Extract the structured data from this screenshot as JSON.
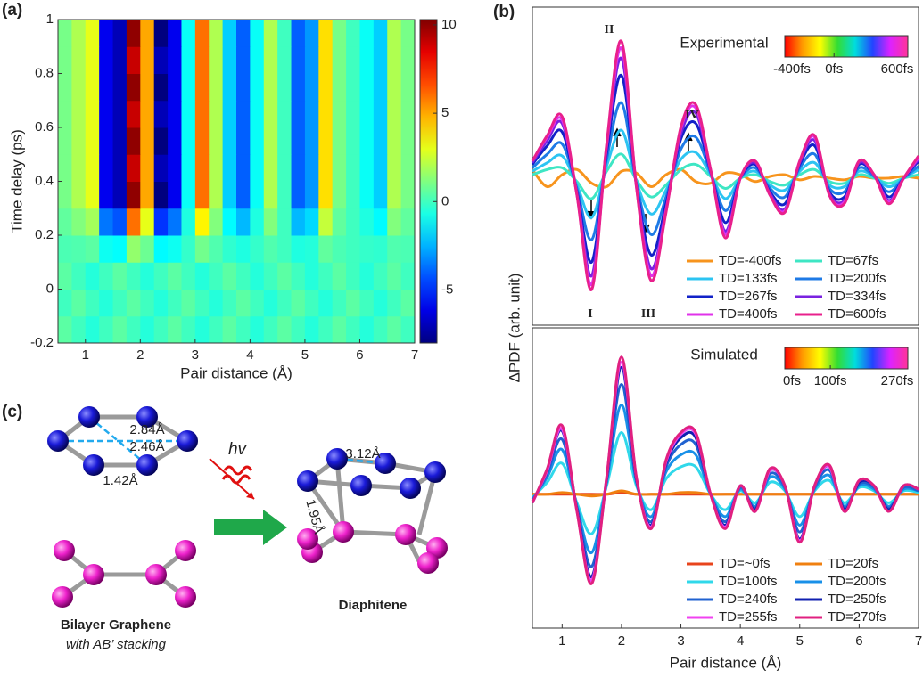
{
  "panel_labels": [
    "(a)",
    "(b)",
    "(c)"
  ],
  "panel_c": {
    "d1": "2.84Å",
    "d2": "2.46Å",
    "d3": "1.42Å",
    "light": "hv",
    "d4": "3.12Å",
    "d5": "1.95Å",
    "left_title": "Bilayer Graphene",
    "left_subtitle": "with AB’ stacking",
    "right_title": "Diaphitene"
  },
  "chart_data": [
    {
      "type": "heatmap",
      "xlabel": "Pair distance (Å)",
      "ylabel": "Time delay (ps)",
      "colormap": "jet",
      "xlim": [
        0.5,
        7
      ],
      "ylim": [
        -0.2,
        1
      ],
      "xticks": [
        1,
        2,
        3,
        4,
        5,
        6,
        7
      ],
      "yticks": [
        -0.2,
        0,
        0.2,
        0.4,
        0.6,
        0.8,
        1
      ],
      "clim": [
        -8,
        10.3
      ],
      "cticks": [
        -5,
        0,
        5,
        10
      ],
      "x_bins": [
        0.5,
        0.75,
        1,
        1.25,
        1.5,
        1.75,
        2,
        2.25,
        2.5,
        2.75,
        3,
        3.25,
        3.5,
        3.75,
        4,
        4.25,
        4.5,
        4.75,
        5,
        5.25,
        5.5,
        5.75,
        6,
        6.25,
        6.5,
        6.75,
        7
      ],
      "y_bins": [
        -0.2,
        -0.1,
        0,
        0.1,
        0.2,
        0.3,
        0.4,
        0.5,
        0.6,
        0.7,
        0.8,
        0.9,
        1
      ],
      "values": [
        [
          0.5,
          0,
          -0.5,
          0,
          0.5,
          0,
          -0.5,
          0,
          0.5,
          0,
          -0.5,
          0,
          0.5,
          0,
          -0.5,
          0,
          0.5,
          0,
          -0.5,
          0,
          0.5,
          0,
          -0.5,
          0,
          0.5,
          0
        ],
        [
          0,
          0.5,
          0,
          -0.5,
          0,
          0.5,
          0,
          -0.5,
          0,
          0.5,
          0,
          -0.5,
          0,
          0.5,
          0,
          -0.5,
          0,
          0.5,
          0,
          -0.5,
          0,
          0.5,
          0,
          -0.5,
          0,
          0.5
        ],
        [
          0.5,
          0,
          -0.5,
          0,
          0.5,
          0,
          -0.5,
          0,
          0.5,
          0,
          -0.5,
          0,
          0.5,
          0,
          -0.5,
          0,
          0.5,
          0,
          -0.5,
          0,
          0.5,
          0,
          -0.5,
          0,
          0.5,
          0
        ],
        [
          0.2,
          0.3,
          0.5,
          -0.9,
          -1.1,
          1.5,
          0.8,
          -1.2,
          -0.9,
          -0.2,
          0.9,
          0.3,
          -0.3,
          -0.6,
          -0.2,
          0.3,
          0,
          -0.6,
          -0.5,
          0.6,
          0.2,
          0,
          -0.2,
          -0.3,
          0.3,
          0.2
        ],
        [
          0.6,
          1.2,
          1.8,
          -3.6,
          -4.2,
          6,
          3,
          -4.8,
          -3.6,
          -0.6,
          3.6,
          1.2,
          -1.2,
          -2.4,
          -0.6,
          1.2,
          0,
          -2.4,
          -1.8,
          2.4,
          0.6,
          0,
          -0.6,
          -1.2,
          1.2,
          0.6
        ],
        [
          1,
          2,
          3,
          -6,
          -7,
          10,
          5,
          -8,
          -6,
          -1,
          6,
          2,
          -2,
          -4,
          -1,
          2,
          0,
          -4,
          -3,
          4,
          1,
          0,
          -1,
          -2,
          2,
          1
        ],
        [
          1,
          2,
          3,
          -6,
          -7,
          9,
          5,
          -7,
          -6,
          -1,
          6,
          2,
          -2,
          -4,
          -1,
          2,
          0,
          -4,
          -3,
          4,
          1,
          0,
          -1,
          -2,
          2,
          1
        ],
        [
          1,
          2,
          3,
          -6,
          -7,
          10,
          5,
          -8,
          -6,
          -1,
          6,
          2,
          -2,
          -4,
          -1,
          2,
          0,
          -4,
          -3,
          4,
          1,
          0,
          -1,
          -2,
          2,
          1
        ],
        [
          1,
          2,
          3,
          -6,
          -7,
          9,
          5,
          -7,
          -6,
          -1,
          6,
          2,
          -2,
          -4,
          -1,
          2,
          0,
          -4,
          -3,
          4,
          1,
          0,
          -1,
          -2,
          2,
          1
        ],
        [
          1,
          2,
          3,
          -6,
          -7,
          10,
          5,
          -8,
          -6,
          -1,
          6,
          2,
          -2,
          -4,
          -1,
          2,
          0,
          -4,
          -3,
          4,
          1,
          0,
          -1,
          -2,
          2,
          1
        ],
        [
          1,
          2,
          3,
          -6,
          -7,
          9,
          5,
          -7,
          -6,
          -1,
          6,
          2,
          -2,
          -4,
          -1,
          2,
          0,
          -4,
          -3,
          4,
          1,
          0,
          -1,
          -2,
          2,
          1
        ],
        [
          1,
          2,
          3,
          -6,
          -7,
          10,
          5,
          -8,
          -6,
          -1,
          6,
          2,
          -2,
          -4,
          -1,
          2,
          0,
          -4,
          -3,
          4,
          1,
          0,
          -1,
          -2,
          2,
          1
        ]
      ]
    },
    {
      "type": "line",
      "title": "Experimental",
      "annotations": [
        "I",
        "II",
        "III",
        "IV"
      ],
      "xlim": [
        0.5,
        7
      ],
      "ylim": [
        -0.86,
        1.0
      ],
      "cbar": {
        "lim": [
          -400,
          600
        ],
        "ticks": [
          {
            "value": -400,
            "label": "-400fs"
          },
          {
            "value": 0,
            "label": "0fs"
          },
          {
            "value": 600,
            "label": "600fs"
          }
        ],
        "colors": [
          "#ff0000",
          "#ff9900",
          "#ffff00",
          "#33dd33",
          "#00dddd",
          "#2244ff",
          "#dd22ff",
          "#ff3399"
        ]
      },
      "x": [
        0.5,
        0.75,
        1,
        1.25,
        1.5,
        1.75,
        2,
        2.25,
        2.5,
        2.75,
        3,
        3.25,
        3.5,
        3.75,
        4,
        4.25,
        4.5,
        4.75,
        5,
        5.25,
        5.5,
        5.75,
        6,
        6.25,
        6.5,
        6.75,
        7
      ],
      "series": [
        {
          "name": "TD=-400fs",
          "color": "#f7941d",
          "values": [
            0.05,
            -0.05,
            0.02,
            0.05,
            -0.03,
            -0.05,
            0.04,
            0.03,
            -0.05,
            0.02,
            0.05,
            -0.02,
            -0.03,
            0.03,
            0.02,
            -0.02,
            0.01,
            0.02,
            -0.01,
            0.01,
            0,
            -0.01,
            0.01,
            0,
            0,
            0.01,
            0
          ]
        },
        {
          "name": "TD=67fs",
          "color": "#3ee6c4",
          "values": [
            0.02,
            0.05,
            0.06,
            -0.02,
            -0.12,
            0.04,
            0.14,
            -0.01,
            -0.11,
            -0.04,
            0.05,
            0.08,
            0.01,
            -0.06,
            0,
            0.02,
            -0.02,
            -0.04,
            0.02,
            0.05,
            -0.02,
            -0.03,
            0.02,
            0,
            -0.03,
            0,
            0.02
          ]
        },
        {
          "name": "TD=133fs",
          "color": "#2cc4f2",
          "values": [
            0.04,
            0.09,
            0.13,
            -0.04,
            -0.23,
            0.07,
            0.28,
            -0.02,
            -0.21,
            -0.07,
            0.11,
            0.15,
            0.02,
            -0.12,
            0,
            0.04,
            -0.04,
            -0.07,
            0.04,
            0.09,
            -0.04,
            -0.05,
            0.04,
            0.01,
            -0.05,
            0,
            0.05
          ]
        },
        {
          "name": "TD=200fs",
          "color": "#1e7ae6",
          "values": [
            0.06,
            0.14,
            0.2,
            -0.06,
            -0.36,
            0.11,
            0.44,
            -0.03,
            -0.33,
            -0.11,
            0.17,
            0.24,
            0.03,
            -0.19,
            0,
            0.06,
            -0.06,
            -0.11,
            0.06,
            0.14,
            -0.06,
            -0.08,
            0.06,
            0.01,
            -0.08,
            0,
            0.07
          ]
        },
        {
          "name": "TD=267fs",
          "color": "#1222c8",
          "values": [
            0.08,
            0.19,
            0.27,
            -0.08,
            -0.49,
            0.15,
            0.6,
            -0.04,
            -0.45,
            -0.15,
            0.23,
            0.32,
            0.04,
            -0.26,
            0,
            0.08,
            -0.08,
            -0.15,
            0.08,
            0.19,
            -0.08,
            -0.11,
            0.08,
            0.02,
            -0.11,
            0,
            0.1
          ]
        },
        {
          "name": "TD=334fs",
          "color": "#7a22e0",
          "values": [
            0.09,
            0.22,
            0.32,
            -0.09,
            -0.57,
            0.18,
            0.7,
            -0.04,
            -0.53,
            -0.18,
            0.26,
            0.38,
            0.04,
            -0.31,
            0,
            0.09,
            -0.09,
            -0.18,
            0.09,
            0.22,
            -0.09,
            -0.13,
            0.09,
            0.02,
            -0.13,
            0,
            0.11
          ]
        },
        {
          "name": "TD=400fs",
          "color": "#e032ea",
          "values": [
            0.1,
            0.24,
            0.34,
            -0.1,
            -0.62,
            0.19,
            0.76,
            -0.05,
            -0.57,
            -0.19,
            0.29,
            0.41,
            0.05,
            -0.33,
            0,
            0.1,
            -0.1,
            -0.19,
            0.1,
            0.24,
            -0.1,
            -0.14,
            0.1,
            0.02,
            -0.14,
            0,
            0.12
          ]
        },
        {
          "name": "TD=600fs",
          "color": "#e8208c",
          "values": [
            0.1,
            0.25,
            0.36,
            -0.1,
            -0.65,
            0.2,
            0.8,
            -0.05,
            -0.6,
            -0.2,
            0.3,
            0.43,
            0.05,
            -0.35,
            0,
            0.1,
            -0.1,
            -0.2,
            0.1,
            0.25,
            -0.1,
            -0.15,
            0.1,
            0.02,
            -0.15,
            0,
            0.13
          ]
        }
      ]
    },
    {
      "type": "line",
      "title": "Simulated",
      "xlabel": "Pair distance (Å)",
      "ylabel": "ΔPDF (arb. unit)",
      "xlim": [
        0.5,
        7
      ],
      "ylim": [
        -0.78,
        0.97
      ],
      "xticks": [
        1,
        2,
        3,
        4,
        5,
        6,
        7
      ],
      "cbar": {
        "lim": [
          0,
          270
        ],
        "ticks": [
          {
            "value": 0,
            "label": "0fs"
          },
          {
            "value": 100,
            "label": "100fs"
          },
          {
            "value": 270,
            "label": "270fs"
          }
        ],
        "colors": [
          "#ff0000",
          "#ff9900",
          "#ffff00",
          "#33dd33",
          "#00dddd",
          "#2244ff",
          "#dd22ff",
          "#ff3399"
        ]
      },
      "x": [
        0.5,
        0.75,
        1,
        1.25,
        1.5,
        1.75,
        2,
        2.25,
        2.5,
        2.75,
        3,
        3.25,
        3.5,
        3.75,
        4,
        4.25,
        4.5,
        4.75,
        5,
        5.25,
        5.5,
        5.75,
        6,
        6.25,
        6.5,
        6.75,
        7
      ],
      "series": [
        {
          "name": "TD=~0fs",
          "color": "#e8441c",
          "values": [
            0,
            0,
            0,
            0,
            0,
            0,
            0.01,
            0,
            0,
            0,
            0,
            0,
            0,
            0,
            0,
            0,
            0,
            0,
            0,
            0,
            0,
            0,
            0,
            0,
            0,
            0,
            0
          ]
        },
        {
          "name": "TD=20fs",
          "color": "#f08010",
          "values": [
            0,
            0,
            0.01,
            0,
            -0.01,
            0,
            0.02,
            0,
            0,
            0,
            0.01,
            0.01,
            0,
            0,
            0,
            0,
            0,
            0,
            0,
            0,
            0,
            0,
            0,
            0,
            0,
            0,
            0
          ]
        },
        {
          "name": "TD=100fs",
          "color": "#30d8ea",
          "values": [
            -0.02,
            0.07,
            0.18,
            -0.05,
            -0.23,
            0.05,
            0.36,
            0.05,
            -0.09,
            0.09,
            0.16,
            0.16,
            0,
            -0.09,
            0.02,
            -0.05,
            0.07,
            0.02,
            -0.13,
            0.02,
            0.08,
            -0.05,
            0.04,
            0.02,
            -0.05,
            0.02,
            0.01
          ]
        },
        {
          "name": "TD=200fs",
          "color": "#1890e8",
          "values": [
            -0.03,
            0.1,
            0.26,
            -0.07,
            -0.34,
            0.07,
            0.52,
            0.07,
            -0.13,
            0.13,
            0.23,
            0.23,
            0,
            -0.13,
            0.03,
            -0.07,
            0.1,
            0.03,
            -0.18,
            0.03,
            0.11,
            -0.07,
            0.05,
            0.03,
            -0.07,
            0.03,
            0.02
          ]
        },
        {
          "name": "TD=240fs",
          "color": "#2062d0",
          "values": [
            -0.04,
            0.12,
            0.32,
            -0.08,
            -0.42,
            0.08,
            0.64,
            0.08,
            -0.16,
            0.16,
            0.29,
            0.29,
            0,
            -0.16,
            0.04,
            -0.08,
            0.12,
            0.04,
            -0.22,
            0.04,
            0.14,
            -0.08,
            0.06,
            0.04,
            -0.08,
            0.04,
            0.02
          ]
        },
        {
          "name": "TD=250fs",
          "color": "#1020b0",
          "values": [
            -0.05,
            0.14,
            0.37,
            -0.09,
            -0.48,
            0.09,
            0.74,
            0.09,
            -0.18,
            0.18,
            0.33,
            0.33,
            0,
            -0.18,
            0.05,
            -0.09,
            0.14,
            0.05,
            -0.26,
            0.05,
            0.16,
            -0.09,
            0.07,
            0.05,
            -0.09,
            0.05,
            0.03
          ]
        },
        {
          "name": "TD=255fs",
          "color": "#f042f0",
          "values": [
            -0.05,
            0.14,
            0.38,
            -0.1,
            -0.5,
            0.1,
            0.77,
            0.1,
            -0.19,
            0.19,
            0.35,
            0.35,
            0,
            -0.19,
            0.05,
            -0.1,
            0.14,
            0.05,
            -0.27,
            0.05,
            0.16,
            -0.1,
            0.08,
            0.05,
            -0.1,
            0.05,
            0.03
          ]
        },
        {
          "name": "TD=270fs",
          "color": "#e02080",
          "values": [
            -0.05,
            0.15,
            0.4,
            -0.1,
            -0.52,
            0.1,
            0.8,
            0.1,
            -0.2,
            0.2,
            0.36,
            0.36,
            0,
            -0.2,
            0.05,
            -0.1,
            0.15,
            0.05,
            -0.28,
            0.05,
            0.17,
            -0.1,
            0.08,
            0.05,
            -0.1,
            0.05,
            0.03
          ]
        }
      ]
    }
  ]
}
